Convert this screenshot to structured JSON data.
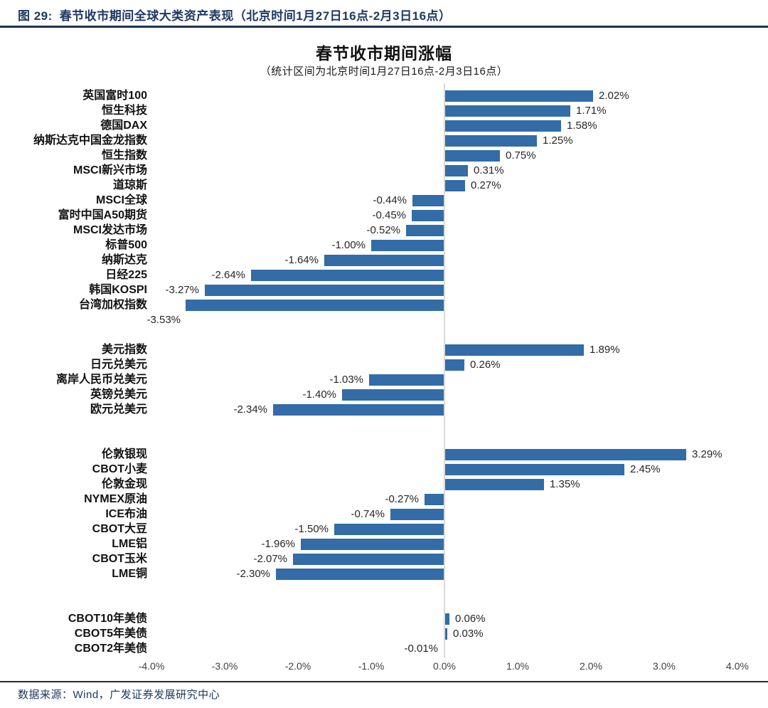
{
  "figure": {
    "caption_prefix": "图 29:",
    "caption_title": "春节收市期间全球大类资产表现（北京时间1月27日16点-2月3日16点）",
    "source": "数据来源：Wind，广发证券发展研究中心"
  },
  "chart_data": {
    "type": "bar",
    "orientation": "horizontal",
    "title": "春节收市期间涨幅",
    "subtitle": "（统计区间为北京时间1月27日16点-2月3日16点）",
    "unit": "%",
    "xlim": [
      -4.0,
      4.0
    ],
    "x_ticks": [
      "-4.0%",
      "-3.0%",
      "-2.0%",
      "-1.0%",
      "0.0%",
      "1.0%",
      "2.0%",
      "3.0%",
      "4.0%"
    ],
    "bar_color": "#336ca6",
    "grid": "zero-axis-only",
    "legend": "none",
    "rows": [
      {
        "label": "英国富时100",
        "value": 2.02,
        "display": "2.02%"
      },
      {
        "label": "恒生科技",
        "value": 1.71,
        "display": "1.71%"
      },
      {
        "label": "德国DAX",
        "value": 1.58,
        "display": "1.58%"
      },
      {
        "label": "纳斯达克中国金龙指数",
        "value": 1.25,
        "display": "1.25%"
      },
      {
        "label": "恒生指数",
        "value": 0.75,
        "display": "0.75%"
      },
      {
        "label": "MSCI新兴市场",
        "value": 0.31,
        "display": "0.31%"
      },
      {
        "label": "道琼斯",
        "value": 0.27,
        "display": "0.27%"
      },
      {
        "label": "MSCI全球",
        "value": -0.44,
        "display": "-0.44%"
      },
      {
        "label": "富时中国A50期货",
        "value": -0.45,
        "display": "-0.45%"
      },
      {
        "label": "MSCI发达市场",
        "value": -0.52,
        "display": "-0.52%"
      },
      {
        "label": "标普500",
        "value": -1.0,
        "display": "-1.00%"
      },
      {
        "label": "纳斯达克",
        "value": -1.64,
        "display": "-1.64%"
      },
      {
        "label": "日经225",
        "value": -2.64,
        "display": "-2.64%"
      },
      {
        "label": "韩国KOSPI",
        "value": -3.27,
        "display": "-3.27%"
      },
      {
        "label": "台湾加权指数",
        "value": -3.53,
        "display": "-3.53%",
        "label_below": true
      },
      {
        "label": "美元指数",
        "value": 1.89,
        "display": "1.89%",
        "gap_before": true
      },
      {
        "label": "日元兑美元",
        "value": 0.26,
        "display": "0.26%"
      },
      {
        "label": "离岸人民币兑美元",
        "value": -1.03,
        "display": "-1.03%"
      },
      {
        "label": "英镑兑美元",
        "value": -1.4,
        "display": "-1.40%"
      },
      {
        "label": "欧元兑美元",
        "value": -2.34,
        "display": "-2.34%"
      },
      {
        "label": "伦敦银现",
        "value": 3.29,
        "display": "3.29%",
        "gap_before": true
      },
      {
        "label": "CBOT小麦",
        "value": 2.45,
        "display": "2.45%"
      },
      {
        "label": "伦敦金现",
        "value": 1.35,
        "display": "1.35%"
      },
      {
        "label": "NYMEX原油",
        "value": -0.27,
        "display": "-0.27%"
      },
      {
        "label": "ICE布油",
        "value": -0.74,
        "display": "-0.74%"
      },
      {
        "label": "CBOT大豆",
        "value": -1.5,
        "display": "-1.50%"
      },
      {
        "label": "LME铝",
        "value": -1.96,
        "display": "-1.96%"
      },
      {
        "label": "CBOT玉米",
        "value": -2.07,
        "display": "-2.07%"
      },
      {
        "label": "LME铜",
        "value": -2.3,
        "display": "-2.30%"
      },
      {
        "label": "CBOT10年美债",
        "value": 0.06,
        "display": "0.06%",
        "gap_before": true
      },
      {
        "label": "CBOT5年美债",
        "value": 0.03,
        "display": "0.03%"
      },
      {
        "label": "CBOT2年美债",
        "value": -0.01,
        "display": "-0.01%"
      }
    ]
  }
}
